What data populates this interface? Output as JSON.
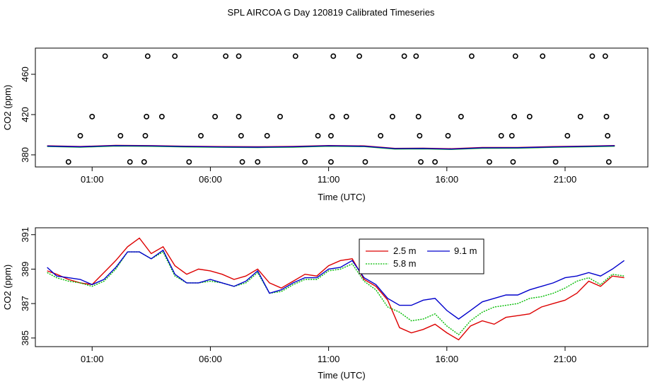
{
  "title": "SPL AIRCOA G  Day 120819  Calibrated Timeseries",
  "colors": {
    "s25": "#dd0000",
    "s58": "#00bb00",
    "s91": "#0000cc",
    "axis": "#000000"
  },
  "chart_data": [
    {
      "type": "scatter",
      "name": "top-panel",
      "xlabel": "Time (UTC)",
      "ylabel": "CO2 (ppm)",
      "xlim": [
        -1.4,
        24.5
      ],
      "ylim": [
        368,
        486
      ],
      "xticks": [
        1,
        6,
        11,
        16,
        21
      ],
      "xtick_labels": [
        "01:00",
        "06:00",
        "11:00",
        "16:00",
        "21:00"
      ],
      "yticks": [
        380,
        420,
        460
      ],
      "ytick_labels": [
        "380",
        "420",
        "460"
      ],
      "outlier_points": [
        {
          "x": 0.0,
          "y": 373
        },
        {
          "x": 0.5,
          "y": 399
        },
        {
          "x": 1.0,
          "y": 418
        },
        {
          "x": 1.55,
          "y": 478
        },
        {
          "x": 2.2,
          "y": 399
        },
        {
          "x": 2.6,
          "y": 373
        },
        {
          "x": 3.25,
          "y": 399
        },
        {
          "x": 3.3,
          "y": 418
        },
        {
          "x": 3.35,
          "y": 478
        },
        {
          "x": 3.2,
          "y": 373
        },
        {
          "x": 3.95,
          "y": 418
        },
        {
          "x": 4.5,
          "y": 478
        },
        {
          "x": 5.1,
          "y": 373
        },
        {
          "x": 5.6,
          "y": 399
        },
        {
          "x": 6.2,
          "y": 418
        },
        {
          "x": 6.65,
          "y": 478
        },
        {
          "x": 7.2,
          "y": 478
        },
        {
          "x": 7.2,
          "y": 418
        },
        {
          "x": 7.3,
          "y": 399
        },
        {
          "x": 7.35,
          "y": 373
        },
        {
          "x": 8.0,
          "y": 373
        },
        {
          "x": 8.4,
          "y": 399
        },
        {
          "x": 8.95,
          "y": 418
        },
        {
          "x": 9.6,
          "y": 478
        },
        {
          "x": 10.0,
          "y": 373
        },
        {
          "x": 10.55,
          "y": 399
        },
        {
          "x": 11.1,
          "y": 399
        },
        {
          "x": 11.15,
          "y": 418
        },
        {
          "x": 11.2,
          "y": 478
        },
        {
          "x": 11.1,
          "y": 373
        },
        {
          "x": 11.75,
          "y": 418
        },
        {
          "x": 12.3,
          "y": 478
        },
        {
          "x": 12.55,
          "y": 373
        },
        {
          "x": 13.2,
          "y": 399
        },
        {
          "x": 13.7,
          "y": 418
        },
        {
          "x": 14.2,
          "y": 478
        },
        {
          "x": 14.7,
          "y": 478
        },
        {
          "x": 14.8,
          "y": 418
        },
        {
          "x": 14.85,
          "y": 399
        },
        {
          "x": 14.9,
          "y": 373
        },
        {
          "x": 15.5,
          "y": 373
        },
        {
          "x": 16.05,
          "y": 399
        },
        {
          "x": 16.6,
          "y": 418
        },
        {
          "x": 17.05,
          "y": 478
        },
        {
          "x": 17.8,
          "y": 373
        },
        {
          "x": 18.3,
          "y": 399
        },
        {
          "x": 18.75,
          "y": 399
        },
        {
          "x": 18.8,
          "y": 373
        },
        {
          "x": 18.85,
          "y": 418
        },
        {
          "x": 18.9,
          "y": 478
        },
        {
          "x": 19.5,
          "y": 418
        },
        {
          "x": 20.05,
          "y": 478
        },
        {
          "x": 20.6,
          "y": 373
        },
        {
          "x": 21.1,
          "y": 399
        },
        {
          "x": 21.65,
          "y": 418
        },
        {
          "x": 22.15,
          "y": 478
        },
        {
          "x": 22.7,
          "y": 478
        },
        {
          "x": 22.75,
          "y": 418
        },
        {
          "x": 22.8,
          "y": 399
        },
        {
          "x": 22.85,
          "y": 373
        }
      ],
      "baseline_lines": [
        {
          "x": [
            -0.9,
            0.5,
            2.0,
            3.5,
            5.0,
            6.5,
            8.0,
            9.5,
            11.0,
            12.5,
            13.8,
            15.0,
            16.2,
            17.5,
            19.0,
            20.5,
            22.0,
            23.1
          ],
          "y": [
            388.7,
            388.0,
            389.2,
            388.9,
            388.3,
            387.9,
            387.7,
            388.1,
            389.0,
            388.6,
            386.2,
            386.4,
            385.8,
            387.0,
            387.1,
            387.9,
            388.5,
            389.0
          ]
        }
      ]
    },
    {
      "type": "line",
      "name": "bottom-panel",
      "xlabel": "Time (UTC)",
      "ylabel": "CO2 (ppm)",
      "xlim": [
        -1.4,
        24.5
      ],
      "ylim": [
        384.5,
        391.4
      ],
      "xticks": [
        1,
        6,
        11,
        16,
        21
      ],
      "xtick_labels": [
        "01:00",
        "06:00",
        "11:00",
        "16:00",
        "21:00"
      ],
      "yticks": [
        385,
        387,
        389,
        391
      ],
      "ytick_labels": [
        "385",
        "387",
        "389",
        "391"
      ],
      "legend": {
        "position": "top-center",
        "entries": [
          "2.5 m",
          "5.8 m",
          "9.1 m"
        ]
      },
      "x": [
        -0.9,
        -0.5,
        0.0,
        0.5,
        1.0,
        1.5,
        2.0,
        2.5,
        3.0,
        3.5,
        4.0,
        4.5,
        5.0,
        5.5,
        6.0,
        6.5,
        7.0,
        7.5,
        8.0,
        8.5,
        9.0,
        9.5,
        10.0,
        10.5,
        11.0,
        11.5,
        12.0,
        12.5,
        13.0,
        13.5,
        14.0,
        14.5,
        15.0,
        15.5,
        16.0,
        16.5,
        17.0,
        17.5,
        18.0,
        18.5,
        19.0,
        19.5,
        20.0,
        20.5,
        21.0,
        21.5,
        22.0,
        22.5,
        23.0,
        23.5
      ],
      "series": [
        {
          "name": "2.5 m",
          "color_key": "s25",
          "values": [
            388.9,
            388.7,
            388.4,
            388.2,
            388.1,
            388.8,
            389.5,
            390.3,
            390.8,
            389.9,
            390.3,
            389.2,
            388.7,
            389.0,
            388.9,
            388.7,
            388.4,
            388.6,
            389.0,
            388.2,
            387.9,
            388.3,
            388.7,
            388.6,
            389.2,
            389.5,
            389.6,
            388.4,
            388.0,
            387.2,
            385.6,
            385.3,
            385.5,
            385.8,
            385.3,
            384.9,
            385.7,
            386.0,
            385.8,
            386.2,
            386.3,
            386.4,
            386.8,
            387.0,
            387.2,
            387.6,
            388.3,
            388.0,
            388.6,
            388.5
          ]
        },
        {
          "name": "5.8 m",
          "color_key": "s58",
          "values": [
            388.8,
            388.5,
            388.3,
            388.2,
            388.0,
            388.3,
            389.0,
            390.0,
            390.0,
            389.6,
            390.0,
            388.6,
            388.2,
            388.2,
            388.3,
            388.2,
            388.0,
            388.2,
            388.8,
            387.6,
            387.7,
            388.1,
            388.4,
            388.4,
            388.9,
            389.0,
            389.3,
            388.3,
            387.8,
            386.8,
            386.5,
            386.0,
            386.1,
            386.4,
            385.7,
            385.2,
            386.0,
            386.5,
            386.8,
            386.9,
            387.0,
            387.3,
            387.4,
            387.6,
            387.9,
            388.3,
            388.5,
            388.1,
            388.7,
            388.6
          ]
        },
        {
          "name": "9.1 m",
          "color_key": "s91",
          "values": [
            389.1,
            388.6,
            388.5,
            388.4,
            388.1,
            388.4,
            389.1,
            390.0,
            390.0,
            389.6,
            390.1,
            388.7,
            388.2,
            388.2,
            388.4,
            388.2,
            388.0,
            388.3,
            388.9,
            387.6,
            387.8,
            388.2,
            388.5,
            388.5,
            389.0,
            389.1,
            389.5,
            388.5,
            388.1,
            387.3,
            386.9,
            386.9,
            387.2,
            387.3,
            386.6,
            386.1,
            386.6,
            387.1,
            387.3,
            387.5,
            387.5,
            387.8,
            388.0,
            388.2,
            388.5,
            388.6,
            388.8,
            388.6,
            389.0,
            389.5
          ]
        }
      ]
    }
  ]
}
